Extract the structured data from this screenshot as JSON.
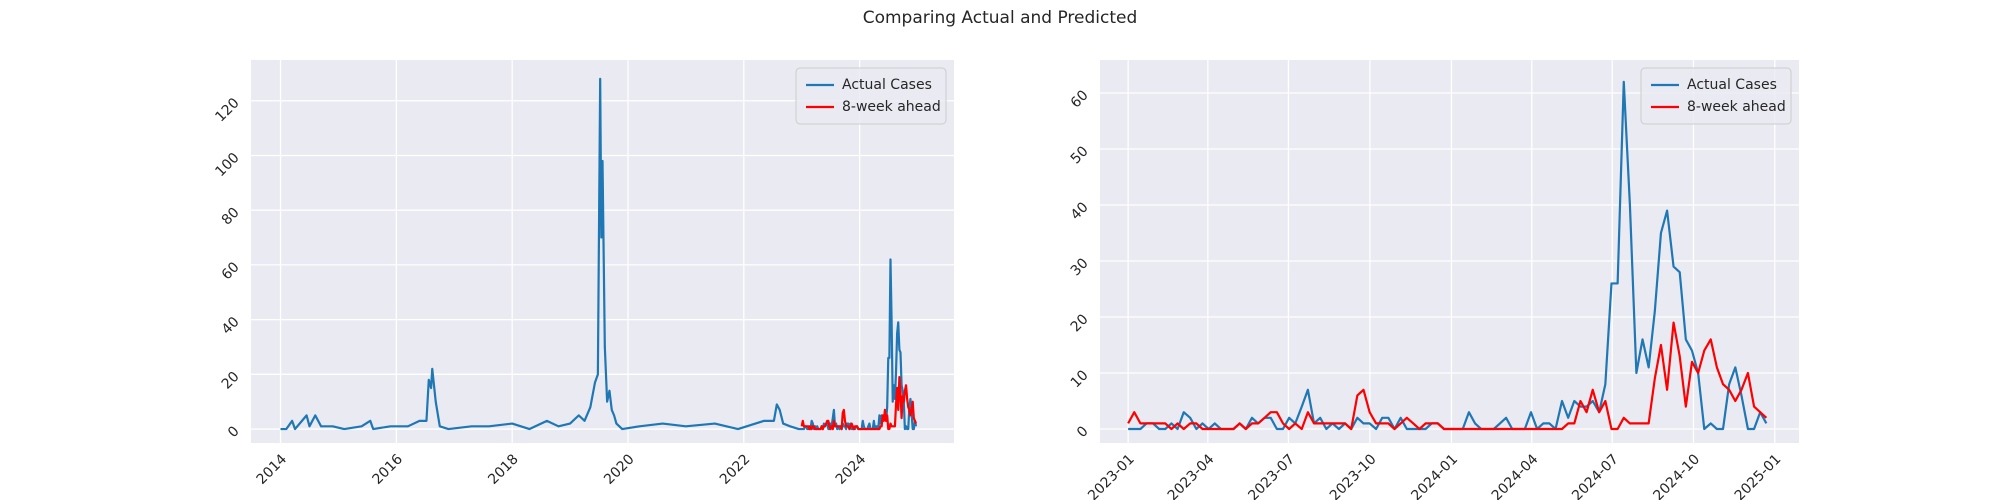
{
  "title": "Comparing Actual and Predicted",
  "chart_data": [
    {
      "type": "line",
      "x": [
        2014.0,
        2014.1,
        2014.2,
        2014.25,
        2014.45,
        2014.5,
        2014.6,
        2014.7,
        2014.9,
        2015.1,
        2015.4,
        2015.55,
        2015.6,
        2015.9,
        2016.2,
        2016.4,
        2016.52,
        2016.56,
        2016.6,
        2016.62,
        2016.68,
        2016.75,
        2016.9,
        2017.3,
        2017.6,
        2018.0,
        2018.3,
        2018.6,
        2018.8,
        2019.0,
        2019.15,
        2019.25,
        2019.35,
        2019.43,
        2019.48,
        2019.52,
        2019.54,
        2019.56,
        2019.6,
        2019.64,
        2019.68,
        2019.72,
        2019.76,
        2019.8,
        2019.9,
        2020.2,
        2020.6,
        2021.0,
        2021.5,
        2021.9,
        2022.2,
        2022.35,
        2022.52,
        2022.57,
        2022.62,
        2022.68,
        2022.8,
        2022.95,
        2023.0,
        2023.019,
        2023.038,
        2023.057,
        2023.077,
        2023.096,
        2023.115,
        2023.134,
        2023.153,
        2023.172,
        2023.192,
        2023.211,
        2023.23,
        2023.249,
        2023.268,
        2023.287,
        2023.307,
        2023.326,
        2023.345,
        2023.364,
        2023.383,
        2023.402,
        2023.422,
        2023.441,
        2023.46,
        2023.479,
        2023.498,
        2023.517,
        2023.537,
        2023.556,
        2023.575,
        2023.594,
        2023.613,
        2023.632,
        2023.652,
        2023.671,
        2023.69,
        2023.709,
        2023.728,
        2023.747,
        2023.767,
        2023.786,
        2023.805,
        2023.824,
        2023.843,
        2023.862,
        2023.882,
        2023.901,
        2023.92,
        2023.939,
        2023.958,
        2023.977,
        2023.997,
        2024.016,
        2024.035,
        2024.054,
        2024.073,
        2024.092,
        2024.112,
        2024.131,
        2024.15,
        2024.169,
        2024.188,
        2024.207,
        2024.227,
        2024.246,
        2024.265,
        2024.284,
        2024.303,
        2024.322,
        2024.342,
        2024.361,
        2024.38,
        2024.399,
        2024.418,
        2024.437,
        2024.457,
        2024.476,
        2024.495,
        2024.514,
        2024.533,
        2024.552,
        2024.572,
        2024.591,
        2024.61,
        2024.629,
        2024.648,
        2024.667,
        2024.687,
        2024.706,
        2024.725,
        2024.744,
        2024.763,
        2024.782,
        2024.802,
        2024.821,
        2024.84,
        2024.859,
        2024.878,
        2024.897,
        2024.917,
        2024.936,
        2024.955,
        2024.974
      ],
      "series": [
        {
          "name": "Actual Cases",
          "color": "#1f77b4",
          "values": [
            0,
            0,
            3,
            0,
            5,
            1,
            5,
            1,
            1,
            0,
            1,
            3,
            0,
            1,
            1,
            3,
            3,
            18,
            15,
            22,
            10,
            1,
            0,
            1,
            1,
            2,
            0,
            3,
            1,
            2,
            5,
            3,
            8,
            17,
            20,
            128,
            70,
            98,
            30,
            10,
            14,
            7,
            5,
            2,
            0,
            1,
            2,
            1,
            2,
            0,
            2,
            3,
            3,
            9,
            7,
            2,
            1,
            0,
            0,
            0,
            0,
            1,
            1,
            0,
            0,
            1,
            0,
            3,
            2,
            0,
            1,
            0,
            1,
            0,
            0,
            0,
            1,
            0,
            2,
            1,
            2,
            2,
            0,
            0,
            2,
            1,
            4,
            7,
            1,
            2,
            0,
            1,
            0,
            1,
            0,
            2,
            1,
            1,
            0,
            2,
            2,
            0,
            2,
            0,
            0,
            0,
            0,
            1,
            1,
            0,
            0,
            0,
            0,
            3,
            1,
            0,
            0,
            0,
            1,
            2,
            0,
            0,
            0,
            3,
            0,
            1,
            1,
            0,
            5,
            2,
            5,
            4,
            4,
            5,
            3,
            8,
            26,
            26,
            62,
            40,
            10,
            16,
            11,
            21,
            35,
            39,
            29,
            28,
            16,
            14,
            10,
            0,
            1,
            0,
            0,
            8,
            11,
            6,
            0,
            0,
            3,
            1
          ]
        },
        {
          "name": "8-week ahead",
          "color": "#ff0000",
          "values": [
            null,
            null,
            null,
            null,
            null,
            null,
            null,
            null,
            null,
            null,
            null,
            null,
            null,
            null,
            null,
            null,
            null,
            null,
            null,
            null,
            null,
            null,
            null,
            null,
            null,
            null,
            null,
            null,
            null,
            null,
            null,
            null,
            null,
            null,
            null,
            null,
            null,
            null,
            null,
            null,
            null,
            null,
            null,
            null,
            null,
            null,
            null,
            null,
            null,
            null,
            null,
            null,
            null,
            null,
            null,
            null,
            null,
            null,
            1,
            3,
            1,
            1,
            1,
            1,
            1,
            0,
            1,
            0,
            1,
            1,
            0,
            0,
            0,
            0,
            0,
            0,
            1,
            0,
            1,
            1,
            2,
            3,
            3,
            1,
            0,
            1,
            0,
            3,
            1,
            1,
            1,
            1,
            1,
            1,
            0,
            6,
            7,
            3,
            1,
            1,
            1,
            0,
            1,
            2,
            1,
            0,
            1,
            1,
            1,
            0,
            0,
            0,
            0,
            0,
            0,
            0,
            0,
            0,
            0,
            0,
            0,
            0,
            0,
            0,
            0,
            0,
            0,
            0,
            0,
            1,
            1,
            5,
            3,
            7,
            3,
            5,
            0,
            0,
            2,
            1,
            1,
            1,
            1,
            9,
            15,
            7,
            19,
            13,
            4,
            12,
            10,
            14,
            16,
            11,
            8,
            7,
            5,
            7,
            10,
            4,
            3,
            2
          ]
        }
      ],
      "xlim": [
        2013.49,
        2025.63
      ],
      "ylim": [
        -5.1,
        134.9
      ],
      "xticks": [
        2014,
        2016,
        2018,
        2020,
        2022,
        2024
      ],
      "yticks": [
        0,
        20,
        40,
        60,
        80,
        100,
        120
      ],
      "grid": true,
      "legend": "upper right"
    },
    {
      "type": "line",
      "x": [
        2023.0,
        2023.019,
        2023.038,
        2023.057,
        2023.077,
        2023.096,
        2023.115,
        2023.134,
        2023.153,
        2023.172,
        2023.192,
        2023.211,
        2023.23,
        2023.249,
        2023.268,
        2023.287,
        2023.307,
        2023.326,
        2023.345,
        2023.364,
        2023.383,
        2023.402,
        2023.422,
        2023.441,
        2023.46,
        2023.479,
        2023.498,
        2023.517,
        2023.537,
        2023.556,
        2023.575,
        2023.594,
        2023.613,
        2023.632,
        2023.652,
        2023.671,
        2023.69,
        2023.709,
        2023.728,
        2023.747,
        2023.767,
        2023.786,
        2023.805,
        2023.824,
        2023.843,
        2023.862,
        2023.882,
        2023.901,
        2023.92,
        2023.939,
        2023.958,
        2023.977,
        2023.997,
        2024.016,
        2024.035,
        2024.054,
        2024.073,
        2024.092,
        2024.112,
        2024.131,
        2024.15,
        2024.169,
        2024.188,
        2024.207,
        2024.227,
        2024.246,
        2024.265,
        2024.284,
        2024.303,
        2024.322,
        2024.342,
        2024.361,
        2024.38,
        2024.399,
        2024.418,
        2024.437,
        2024.457,
        2024.476,
        2024.495,
        2024.514,
        2024.533,
        2024.552,
        2024.572,
        2024.591,
        2024.61,
        2024.629,
        2024.648,
        2024.667,
        2024.687,
        2024.706,
        2024.725,
        2024.744,
        2024.763,
        2024.782,
        2024.802,
        2024.821,
        2024.84,
        2024.859,
        2024.878,
        2024.897,
        2024.917,
        2024.936,
        2024.955,
        2024.974
      ],
      "series": [
        {
          "name": "Actual Cases",
          "color": "#1f77b4",
          "values": [
            0,
            0,
            0,
            1,
            1,
            0,
            0,
            1,
            0,
            3,
            2,
            0,
            1,
            0,
            1,
            0,
            0,
            0,
            1,
            0,
            2,
            1,
            2,
            2,
            0,
            0,
            2,
            1,
            4,
            7,
            1,
            2,
            0,
            1,
            0,
            1,
            0,
            2,
            1,
            1,
            0,
            2,
            2,
            0,
            2,
            0,
            0,
            0,
            0,
            1,
            1,
            0,
            0,
            0,
            0,
            3,
            1,
            0,
            0,
            0,
            1,
            2,
            0,
            0,
            0,
            3,
            0,
            1,
            1,
            0,
            5,
            2,
            5,
            4,
            4,
            5,
            3,
            8,
            26,
            26,
            62,
            40,
            10,
            16,
            11,
            21,
            35,
            39,
            29,
            28,
            16,
            14,
            10,
            0,
            1,
            0,
            0,
            8,
            11,
            6,
            0,
            0,
            3,
            1
          ]
        },
        {
          "name": "8-week ahead",
          "color": "#ff0000",
          "values": [
            1,
            3,
            1,
            1,
            1,
            1,
            1,
            0,
            1,
            0,
            1,
            1,
            0,
            0,
            0,
            0,
            0,
            0,
            1,
            0,
            1,
            1,
            2,
            3,
            3,
            1,
            0,
            1,
            0,
            3,
            1,
            1,
            1,
            1,
            1,
            1,
            0,
            6,
            7,
            3,
            1,
            1,
            1,
            0,
            1,
            2,
            1,
            0,
            1,
            1,
            1,
            0,
            0,
            0,
            0,
            0,
            0,
            0,
            0,
            0,
            0,
            0,
            0,
            0,
            0,
            0,
            0,
            0,
            0,
            0,
            0,
            1,
            1,
            5,
            3,
            7,
            3,
            5,
            0,
            0,
            2,
            1,
            1,
            1,
            1,
            9,
            15,
            7,
            19,
            13,
            4,
            12,
            10,
            14,
            16,
            11,
            8,
            7,
            5,
            7,
            10,
            4,
            3,
            2
          ]
        }
      ],
      "xlim": [
        2022.913,
        2025.075
      ],
      "ylim": [
        -2.5,
        65.9
      ],
      "xticks": [
        {
          "value": 2023.0,
          "label": "2023-01"
        },
        {
          "value": 2023.2466,
          "label": "2023-04"
        },
        {
          "value": 2023.4959,
          "label": "2023-07"
        },
        {
          "value": 2023.7479,
          "label": "2023-10"
        },
        {
          "value": 2024.0,
          "label": "2024-01"
        },
        {
          "value": 2024.2486,
          "label": "2024-04"
        },
        {
          "value": 2024.4973,
          "label": "2024-07"
        },
        {
          "value": 2024.7486,
          "label": "2024-10"
        },
        {
          "value": 2025.0,
          "label": "2025-01"
        }
      ],
      "yticks": [
        0,
        10,
        20,
        30,
        40,
        50,
        60
      ],
      "grid": true,
      "legend": "upper right"
    }
  ]
}
